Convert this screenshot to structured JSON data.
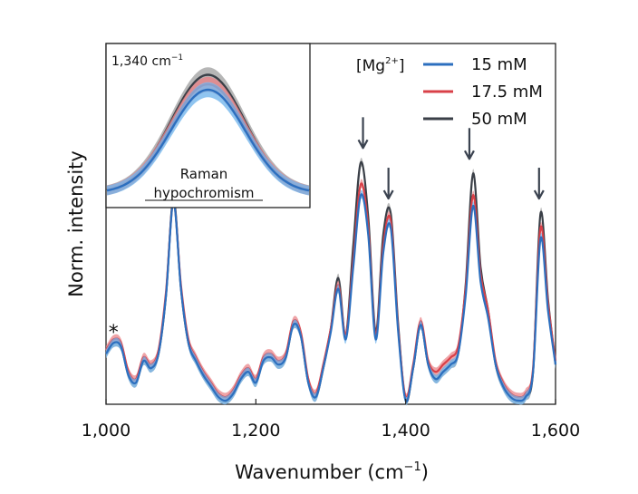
{
  "chart_data": {
    "type": "line",
    "title": "",
    "xlabel": "Wavenumber (cm",
    "xlabel_sup": "−1",
    "xlabel_close": ")",
    "ylabel": "Norm. intensity",
    "xlim": [
      1000,
      1600
    ],
    "ylim": [
      0,
      1
    ],
    "xticks": [
      1000,
      1200,
      1400,
      1600
    ],
    "xtick_labels": [
      "1,000",
      "1,200",
      "1,400",
      "1,600"
    ],
    "yticks_shown": false,
    "grid": false,
    "star_marker": {
      "label": "*",
      "x": 1010
    },
    "arrows_at": [
      1343,
      1377,
      1485,
      1578
    ],
    "legend": {
      "title": "[Mg",
      "title_sup": "2+",
      "title_close": "]",
      "position": "top-right",
      "entries": [
        "15 mM",
        "17.5 mM",
        "50 mM"
      ]
    },
    "series": [
      {
        "name": "15 mM",
        "color": "#2c6fbf",
        "band_color": "#74b6ec",
        "scale": 0.93,
        "x": [
          1000,
          1010,
          1020,
          1030,
          1040,
          1050,
          1060,
          1070,
          1080,
          1090,
          1100,
          1110,
          1120,
          1130,
          1140,
          1150,
          1160,
          1170,
          1180,
          1190,
          1200,
          1210,
          1220,
          1230,
          1240,
          1250,
          1260,
          1270,
          1280,
          1290,
          1300,
          1310,
          1320,
          1330,
          1340,
          1350,
          1360,
          1370,
          1380,
          1390,
          1400,
          1410,
          1420,
          1430,
          1440,
          1450,
          1460,
          1470,
          1480,
          1490,
          1500,
          1510,
          1520,
          1530,
          1540,
          1550,
          1560,
          1570,
          1580,
          1590,
          1600
        ],
        "y": [
          0.14,
          0.17,
          0.16,
          0.08,
          0.06,
          0.12,
          0.1,
          0.14,
          0.3,
          0.56,
          0.32,
          0.17,
          0.12,
          0.08,
          0.05,
          0.02,
          0.01,
          0.03,
          0.07,
          0.09,
          0.06,
          0.12,
          0.13,
          0.11,
          0.13,
          0.22,
          0.19,
          0.06,
          0.02,
          0.1,
          0.2,
          0.32,
          0.18,
          0.38,
          0.58,
          0.47,
          0.18,
          0.42,
          0.49,
          0.2,
          0.01,
          0.1,
          0.22,
          0.11,
          0.07,
          0.09,
          0.11,
          0.14,
          0.3,
          0.55,
          0.34,
          0.24,
          0.11,
          0.05,
          0.02,
          0.01,
          0.02,
          0.09,
          0.46,
          0.26,
          0.11
        ]
      },
      {
        "name": "17.5 mM",
        "color": "#d94048",
        "band_color": "#e9858a",
        "scale": 0.98,
        "x": [
          1000,
          1010,
          1020,
          1030,
          1040,
          1050,
          1060,
          1070,
          1080,
          1090,
          1100,
          1110,
          1120,
          1130,
          1140,
          1150,
          1160,
          1170,
          1180,
          1190,
          1200,
          1210,
          1220,
          1230,
          1240,
          1250,
          1260,
          1270,
          1280,
          1290,
          1300,
          1310,
          1320,
          1330,
          1340,
          1350,
          1360,
          1370,
          1380,
          1390,
          1400,
          1410,
          1420,
          1430,
          1440,
          1450,
          1460,
          1470,
          1480,
          1490,
          1500,
          1510,
          1520,
          1530,
          1540,
          1550,
          1560,
          1570,
          1580,
          1590,
          1600
        ],
        "y": [
          0.15,
          0.18,
          0.17,
          0.09,
          0.07,
          0.13,
          0.11,
          0.15,
          0.31,
          0.56,
          0.33,
          0.18,
          0.13,
          0.09,
          0.06,
          0.03,
          0.02,
          0.04,
          0.08,
          0.1,
          0.07,
          0.13,
          0.14,
          0.12,
          0.14,
          0.23,
          0.2,
          0.07,
          0.03,
          0.11,
          0.21,
          0.33,
          0.19,
          0.4,
          0.61,
          0.49,
          0.19,
          0.44,
          0.51,
          0.21,
          0.02,
          0.11,
          0.23,
          0.12,
          0.09,
          0.11,
          0.13,
          0.16,
          0.32,
          0.58,
          0.36,
          0.26,
          0.12,
          0.06,
          0.03,
          0.02,
          0.03,
          0.1,
          0.49,
          0.28,
          0.12
        ]
      },
      {
        "name": "50 mM",
        "color": "#3a3f47",
        "band_color": "#a4a4a4",
        "scale": 1.05,
        "x": [
          1000,
          1010,
          1020,
          1030,
          1040,
          1050,
          1060,
          1070,
          1080,
          1090,
          1100,
          1110,
          1120,
          1130,
          1140,
          1150,
          1160,
          1170,
          1180,
          1190,
          1200,
          1210,
          1220,
          1230,
          1240,
          1250,
          1260,
          1270,
          1280,
          1290,
          1300,
          1310,
          1320,
          1330,
          1340,
          1350,
          1360,
          1370,
          1380,
          1390,
          1400,
          1410,
          1420,
          1430,
          1440,
          1450,
          1460,
          1470,
          1480,
          1490,
          1500,
          1510,
          1520,
          1530,
          1540,
          1550,
          1560,
          1570,
          1580,
          1590,
          1600
        ],
        "y": [
          0.14,
          0.17,
          0.16,
          0.08,
          0.06,
          0.12,
          0.1,
          0.14,
          0.3,
          0.57,
          0.32,
          0.17,
          0.12,
          0.08,
          0.05,
          0.02,
          0.01,
          0.03,
          0.07,
          0.09,
          0.06,
          0.12,
          0.13,
          0.11,
          0.13,
          0.22,
          0.19,
          0.06,
          0.02,
          0.1,
          0.21,
          0.35,
          0.19,
          0.44,
          0.67,
          0.52,
          0.2,
          0.47,
          0.53,
          0.22,
          0.01,
          0.1,
          0.22,
          0.11,
          0.07,
          0.09,
          0.11,
          0.14,
          0.33,
          0.64,
          0.38,
          0.26,
          0.11,
          0.05,
          0.02,
          0.01,
          0.02,
          0.09,
          0.53,
          0.29,
          0.11
        ]
      }
    ],
    "inset": {
      "title": "1,340 cm",
      "title_sup": "−1",
      "annotation_line1": "Raman",
      "annotation_line2": "hypochromism",
      "peak_center": 1340,
      "peak_heights": [
        0.82,
        0.86,
        0.93
      ]
    }
  }
}
